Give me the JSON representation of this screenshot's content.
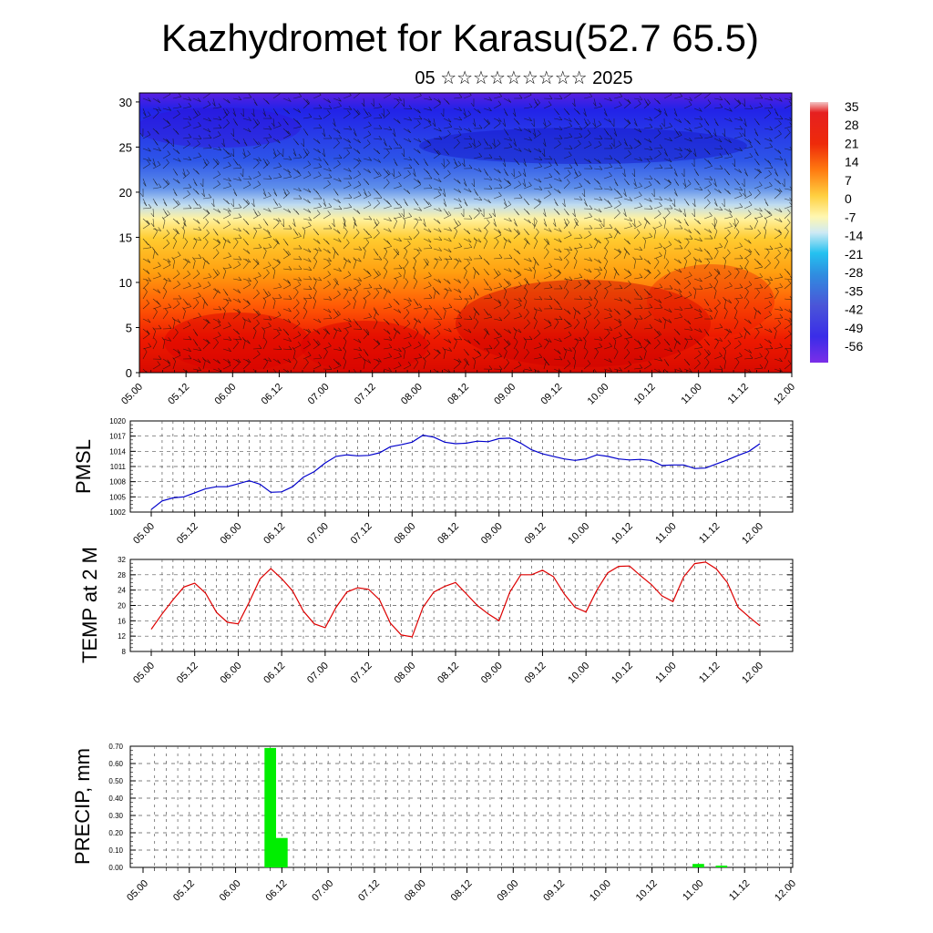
{
  "title": "Kazhydromet for Karasu(52.7 65.5)",
  "subtitle": "05 ☆☆☆☆☆☆☆☆☆ 2025",
  "time_labels": [
    "05.00",
    "05.12",
    "06.00",
    "06.12",
    "07.00",
    "07.12",
    "08.00",
    "08.12",
    "09.00",
    "09.12",
    "10.00",
    "10.12",
    "11.00",
    "11.12",
    "12.00"
  ],
  "colors": {
    "pmsl_line": "#0000cc",
    "temp_line": "#dd0000",
    "precip_bar": "#00ee00"
  },
  "chart_data": [
    {
      "type": "heatmap",
      "title": "Kazhydromet for Karasu(52.7 65.5)",
      "subtitle": "05 ☆☆☆☆☆☆☆☆☆ 2025",
      "x_tick_labels": [
        "05.00",
        "05.12",
        "06.00",
        "06.12",
        "07.00",
        "07.12",
        "08.00",
        "08.12",
        "09.00",
        "09.12",
        "10.00",
        "10.12",
        "11.00",
        "11.12",
        "12.00"
      ],
      "y_ticks": [
        0,
        5,
        10,
        15,
        20,
        25,
        30
      ],
      "ylim": [
        0,
        31
      ],
      "colorbar_labels": [
        "35",
        "28",
        "21",
        "14",
        "7",
        "0",
        "-7",
        "-14",
        "-21",
        "-28",
        "-35",
        "-42",
        "-49",
        "-56"
      ],
      "overlay": "wind barbs",
      "description_of_field": "temperature by level over time"
    },
    {
      "type": "line",
      "ylabel": "PMSL",
      "x_tick_labels": [
        "05.00",
        "05.12",
        "06.00",
        "06.12",
        "07.00",
        "07.12",
        "08.00",
        "08.12",
        "09.00",
        "09.12",
        "10.00",
        "10.12",
        "11.00",
        "11.12",
        "12.00"
      ],
      "y_tick_labels": [
        "1002",
        "1005",
        "1008",
        "1011",
        "1014",
        "1017",
        "1020"
      ],
      "ylim": [
        1002,
        1020
      ],
      "step_hours": 3,
      "values": [
        1002.5,
        1004.2,
        1004.8,
        1005.0,
        1005.8,
        1006.6,
        1007.0,
        1007.0,
        1007.6,
        1008.2,
        1007.5,
        1005.9,
        1006.0,
        1007.0,
        1008.9,
        1010.0,
        1011.7,
        1013.0,
        1013.3,
        1013.1,
        1013.2,
        1013.7,
        1014.9,
        1015.3,
        1015.8,
        1017.2,
        1016.8,
        1015.8,
        1015.5,
        1015.6,
        1016.0,
        1015.9,
        1016.5,
        1016.6,
        1015.6,
        1014.3,
        1013.5,
        1013.0,
        1012.5,
        1012.2,
        1012.5,
        1013.3,
        1013.0,
        1012.5,
        1012.3,
        1012.4,
        1012.2,
        1011.2,
        1011.3,
        1011.3,
        1010.6,
        1010.7,
        1011.5,
        1012.3,
        1013.2,
        1014.0,
        1015.5
      ]
    },
    {
      "type": "line",
      "ylabel": "TEMP at 2 M",
      "x_tick_labels": [
        "05.00",
        "05.12",
        "06.00",
        "06.12",
        "07.00",
        "07.12",
        "08.00",
        "08.12",
        "09.00",
        "09.12",
        "10.00",
        "10.12",
        "11.00",
        "11.12",
        "12.00"
      ],
      "y_tick_labels": [
        "8",
        "12",
        "16",
        "20",
        "24",
        "28",
        "32"
      ],
      "ylim": [
        8,
        32
      ],
      "step_hours": 3,
      "values": [
        13.8,
        17.8,
        21.5,
        24.8,
        25.8,
        23.2,
        18.2,
        15.6,
        15.2,
        20.8,
        26.9,
        29.6,
        27.0,
        23.8,
        18.5,
        15.2,
        14.2,
        19.5,
        23.5,
        24.6,
        24.2,
        21.5,
        15.4,
        12.3,
        11.8,
        19.5,
        23.5,
        25.0,
        26.0,
        23.0,
        20.0,
        17.8,
        16.0,
        23.5,
        28.0,
        28.0,
        29.2,
        27.5,
        23.0,
        19.5,
        18.3,
        24.0,
        28.5,
        30.2,
        30.3,
        27.8,
        25.5,
        22.5,
        21.0,
        27.5,
        30.9,
        31.3,
        29.5,
        26.0,
        19.5,
        17.0,
        14.7
      ]
    },
    {
      "type": "bar",
      "ylabel": "PRECIP, mm",
      "x_tick_labels": [
        "05.00",
        "05.12",
        "06.00",
        "06.12",
        "07.00",
        "07.12",
        "08.00",
        "08.12",
        "09.00",
        "09.12",
        "10.00",
        "10.12",
        "11.00",
        "11.12",
        "12.00"
      ],
      "y_tick_labels": [
        "0.00",
        "0.10",
        "0.20",
        "0.30",
        "0.40",
        "0.50",
        "0.60",
        "0.70"
      ],
      "ylim": [
        0,
        0.7
      ],
      "step_hours": 3,
      "bars": [
        {
          "time": "06.09",
          "value": 0.69
        },
        {
          "time": "06.12",
          "value": 0.17
        },
        {
          "time": "11.00",
          "value": 0.02
        },
        {
          "time": "11.06",
          "value": 0.01
        }
      ]
    }
  ]
}
